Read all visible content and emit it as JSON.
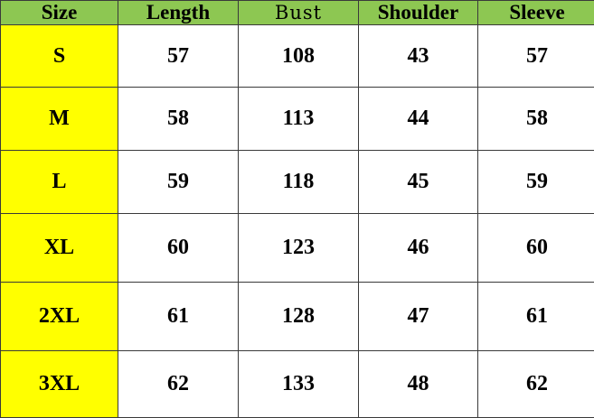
{
  "headers": [
    "Size",
    "Length",
    "Bust",
    "Shoulder",
    "Sleeve"
  ],
  "rows": [
    [
      "S",
      "57",
      "108",
      "43",
      "57"
    ],
    [
      "M",
      "58",
      "113",
      "44",
      "58"
    ],
    [
      "L",
      "59",
      "118",
      "45",
      "59"
    ],
    [
      "XL",
      "60",
      "123",
      "46",
      "60"
    ],
    [
      "2XL",
      "61",
      "128",
      "47",
      "61"
    ],
    [
      "3XL",
      "62",
      "133",
      "48",
      "62"
    ]
  ],
  "colors": {
    "header_bg": "#8dc752",
    "size_column_bg": "#ffff00"
  }
}
